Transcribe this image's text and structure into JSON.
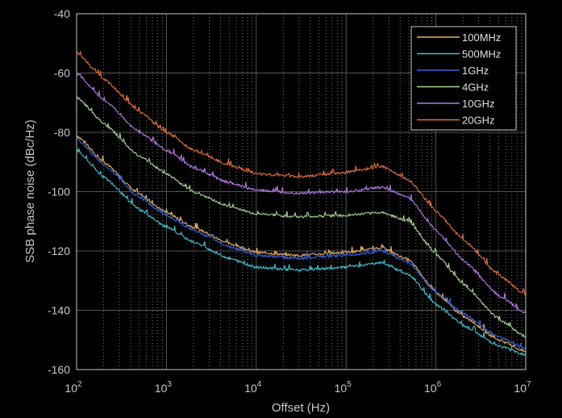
{
  "chart_data": {
    "type": "line",
    "xscale": "log",
    "xlabel": "Offset (Hz)",
    "ylabel": "SSB phase noise (dBc/Hz)",
    "xlim": [
      100,
      10000000
    ],
    "ylim": [
      -160,
      -40
    ],
    "grid": true,
    "legend_position": "top-right",
    "x_ticks": [
      {
        "base": "10",
        "exp": "2"
      },
      {
        "base": "10",
        "exp": "3"
      },
      {
        "base": "10",
        "exp": "4"
      },
      {
        "base": "10",
        "exp": "5"
      },
      {
        "base": "10",
        "exp": "6"
      },
      {
        "base": "10",
        "exp": "7"
      }
    ],
    "y_ticks": [
      "-40",
      "-60",
      "-80",
      "-100",
      "-120",
      "-140",
      "-160"
    ],
    "y_tick_values": [
      -40,
      -60,
      -80,
      -100,
      -120,
      -140,
      -160
    ],
    "x": [
      100,
      200,
      500,
      1000,
      2000,
      5000,
      10000,
      30000,
      100000,
      250000,
      500000,
      1000000,
      2000000,
      5000000,
      10000000
    ],
    "series": [
      {
        "name": "100MHz",
        "color": "#e8b060",
        "values": [
          -81,
          -90,
          -101,
          -107,
          -112,
          -117.5,
          -120.5,
          -121.5,
          -120.5,
          -119,
          -123,
          -134,
          -142,
          -150,
          -154
        ]
      },
      {
        "name": "500MHz",
        "color": "#3cc4d4",
        "values": [
          -86,
          -95,
          -106,
          -112,
          -117,
          -122.5,
          -125.5,
          -126.5,
          -125.5,
          -124,
          -128,
          -138,
          -145,
          -152,
          -155
        ]
      },
      {
        "name": "1GHz",
        "color": "#3464e0",
        "values": [
          -82,
          -91,
          -102,
          -108,
          -113,
          -118.5,
          -121.5,
          -122.5,
          -121.5,
          -120,
          -124,
          -134,
          -141,
          -149,
          -153
        ]
      },
      {
        "name": "4GHz",
        "color": "#a6d498",
        "values": [
          -68,
          -77,
          -88,
          -94,
          -100,
          -105,
          -107.5,
          -108.5,
          -108,
          -107,
          -110,
          -121,
          -131,
          -143,
          -149
        ]
      },
      {
        "name": "10GHz",
        "color": "#b478e4",
        "values": [
          -60,
          -69,
          -80,
          -86,
          -92,
          -97,
          -99.5,
          -100.5,
          -100,
          -98.5,
          -102,
          -113,
          -123,
          -135,
          -141
        ]
      },
      {
        "name": "20GHz",
        "color": "#e4703c",
        "values": [
          -53,
          -62,
          -73,
          -80,
          -86,
          -91,
          -94,
          -95,
          -93.5,
          -91.5,
          -96,
          -106.5,
          -116,
          -128,
          -135
        ]
      }
    ]
  }
}
